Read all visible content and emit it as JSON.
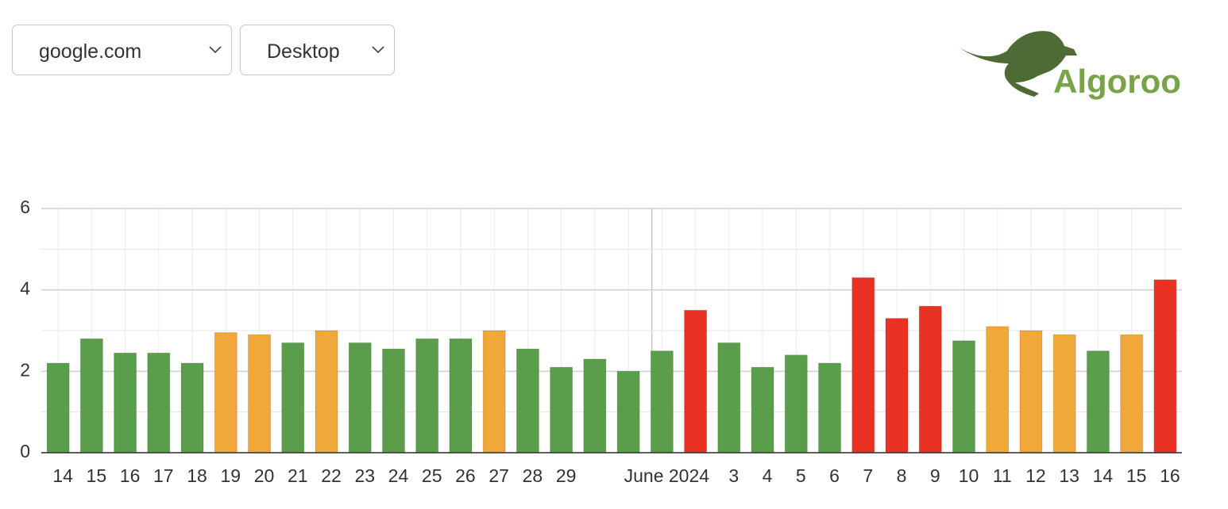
{
  "controls": {
    "site": "google.com",
    "device": "Desktop"
  },
  "logo": "Algoroo",
  "chart_data": {
    "type": "bar",
    "categories": [
      "14",
      "15",
      "16",
      "17",
      "18",
      "19",
      "20",
      "21",
      "22",
      "23",
      "24",
      "25",
      "26",
      "27",
      "28",
      "29",
      null,
      null,
      "June 2024",
      null,
      "3",
      "4",
      "5",
      "6",
      "7",
      "8",
      "9",
      "10",
      "11",
      "12",
      "13",
      "14",
      "15",
      "16"
    ],
    "values": [
      2.2,
      2.8,
      2.45,
      2.45,
      2.2,
      2.95,
      2.9,
      2.7,
      3.0,
      2.7,
      2.55,
      2.8,
      2.8,
      3.0,
      2.55,
      2.1,
      2.3,
      2.0,
      2.5,
      3.5,
      2.7,
      2.1,
      2.4,
      2.2,
      4.3,
      3.3,
      3.6,
      2.75,
      3.1,
      3.0,
      2.9,
      2.5,
      2.9,
      4.25
    ],
    "colors": [
      "#5a9e4b",
      "#5a9e4b",
      "#5a9e4b",
      "#5a9e4b",
      "#5a9e4b",
      "#f0a83a",
      "#f0a83a",
      "#5a9e4b",
      "#f0a83a",
      "#5a9e4b",
      "#5a9e4b",
      "#5a9e4b",
      "#5a9e4b",
      "#f0a83a",
      "#5a9e4b",
      "#5a9e4b",
      "#5a9e4b",
      "#5a9e4b",
      "#5a9e4b",
      "#e83324",
      "#5a9e4b",
      "#5a9e4b",
      "#5a9e4b",
      "#5a9e4b",
      "#e83324",
      "#e83324",
      "#e83324",
      "#5a9e4b",
      "#f0a83a",
      "#f0a83a",
      "#f0a83a",
      "#5a9e4b",
      "#f0a83a",
      "#e83324"
    ],
    "ylim": [
      0,
      6
    ],
    "yticks": [
      0,
      2,
      4,
      6
    ],
    "yminorticks": [
      1,
      3,
      5
    ],
    "grid": true
  }
}
